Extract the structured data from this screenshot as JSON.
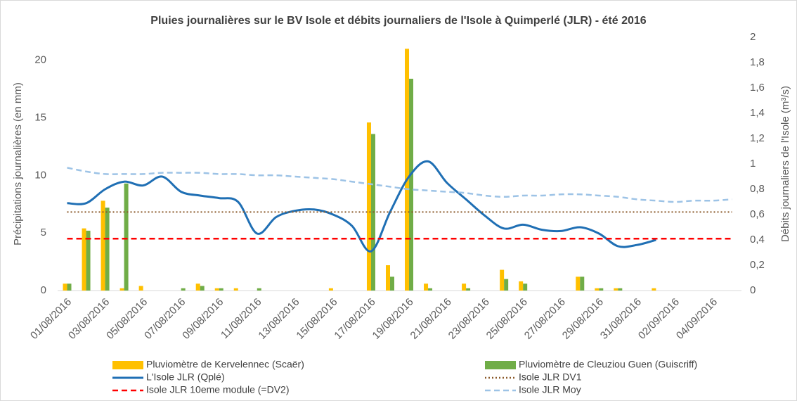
{
  "chart_data": {
    "type": "combo",
    "title": "Pluies journalières sur le BV Isole et débits journaliers de l'Isole à Quimperlé (JLR) - été 2016",
    "ylabel": "Précipitations journalières (en mm)",
    "y2label": "Débits journaliers de l'Isole  (m³/s)",
    "categories": [
      "01/08/2016",
      null,
      "03/08/2016",
      null,
      "05/08/2016",
      null,
      "07/08/2016",
      null,
      "09/08/2016",
      null,
      "11/08/2016",
      null,
      "13/08/2016",
      null,
      "15/08/2016",
      null,
      "17/08/2016",
      null,
      "19/08/2016",
      null,
      "21/08/2016",
      null,
      "23/08/2016",
      null,
      "25/08/2016",
      null,
      "27/08/2016",
      null,
      "29/08/2016",
      null,
      "31/08/2016",
      null,
      "02/09/2016",
      null,
      "04/09/2016",
      null
    ],
    "ylim": [
      0,
      22
    ],
    "yticks": [
      0,
      5,
      10,
      15,
      20
    ],
    "y2lim": [
      0,
      2
    ],
    "y2ticks": [
      0,
      {
        "value": 0.2,
        "label": "0,2"
      },
      {
        "value": 0.4,
        "label": "0,4"
      },
      {
        "value": 0.6,
        "label": "0,6"
      },
      {
        "value": 0.8,
        "label": "0,8"
      },
      1,
      {
        "value": 1.2,
        "label": "1,2"
      },
      {
        "value": 1.4,
        "label": "1,4"
      },
      {
        "value": 1.6,
        "label": "1,6"
      },
      {
        "value": 1.8,
        "label": "1,8"
      },
      2
    ],
    "series": [
      {
        "name": "Pluviomètre de Kervelennec (Scaër)",
        "type": "bar",
        "color": "#ffc000",
        "values": [
          0.6,
          5.4,
          7.8,
          0.2,
          0.4,
          0,
          0,
          0.6,
          0.2,
          0.2,
          0,
          0,
          0,
          0,
          0.2,
          0,
          14.6,
          2.2,
          21,
          0.6,
          0,
          0.6,
          0,
          1.8,
          0.8,
          0,
          0,
          1.2,
          0.2,
          0.2,
          0,
          0.2,
          0,
          0,
          0,
          0
        ]
      },
      {
        "name": "Pluviomètre de Cleuziou Guen (Guiscriff)",
        "type": "bar",
        "color": "#70ad47",
        "values": [
          0.6,
          5.2,
          7.2,
          9.3,
          0,
          0,
          0.2,
          0.4,
          0.2,
          0,
          0.2,
          0,
          0,
          0,
          0,
          0,
          13.6,
          1.2,
          18.4,
          0.2,
          0,
          0.2,
          0,
          1.0,
          0.6,
          0,
          0,
          1.2,
          0.2,
          0.2,
          0,
          0,
          0,
          0,
          0,
          0
        ]
      },
      {
        "name": "L'Isole JLR (Qplé)",
        "type": "line",
        "axis": "y2",
        "color": "#1f6fb4",
        "line_style": "solid",
        "smooth": true,
        "values": [
          0.69,
          0.69,
          0.8,
          0.86,
          0.83,
          0.9,
          0.78,
          0.75,
          0.73,
          0.7,
          0.45,
          0.58,
          0.63,
          0.64,
          0.6,
          0.51,
          0.31,
          0.62,
          0.9,
          1.02,
          0.85,
          0.72,
          0.59,
          0.49,
          0.52,
          0.48,
          0.47,
          0.5,
          0.45,
          0.35,
          0.36,
          0.4,
          null,
          null,
          null,
          null
        ]
      },
      {
        "name": "Isole JLR DV1",
        "type": "line",
        "axis": "y2",
        "color": "#8b5a2b",
        "line_style": "dotted",
        "smooth": false,
        "values": [
          0.62,
          0.62,
          0.62,
          0.62,
          0.62,
          0.62,
          0.62,
          0.62,
          0.62,
          0.62,
          0.62,
          0.62,
          0.62,
          0.62,
          0.62,
          0.62,
          0.62,
          0.62,
          0.62,
          0.62,
          0.62,
          0.62,
          0.62,
          0.62,
          0.62,
          0.62,
          0.62,
          0.62,
          0.62,
          0.62,
          0.62,
          0.62,
          0.62,
          0.62,
          0.62,
          0.62
        ]
      },
      {
        "name": "Isole JLR 10eme module (=DV2)",
        "type": "line",
        "axis": "y2",
        "color": "#ff0000",
        "line_style": "dashed",
        "smooth": false,
        "values": [
          0.41,
          0.41,
          0.41,
          0.41,
          0.41,
          0.41,
          0.41,
          0.41,
          0.41,
          0.41,
          0.41,
          0.41,
          0.41,
          0.41,
          0.41,
          0.41,
          0.41,
          0.41,
          0.41,
          0.41,
          0.41,
          0.41,
          0.41,
          0.41,
          0.41,
          0.41,
          0.41,
          0.41,
          0.41,
          0.41,
          0.41,
          0.41,
          0.41,
          0.41,
          0.41,
          0.41
        ]
      },
      {
        "name": "Isole JLR Moy",
        "type": "line",
        "axis": "y2",
        "color": "#9dc3e6",
        "line_style": "dashed",
        "smooth": true,
        "values": [
          0.97,
          0.94,
          0.92,
          0.92,
          0.92,
          0.93,
          0.93,
          0.93,
          0.92,
          0.92,
          0.91,
          0.91,
          0.9,
          0.89,
          0.88,
          0.86,
          0.84,
          0.82,
          0.8,
          0.79,
          0.78,
          0.77,
          0.75,
          0.74,
          0.75,
          0.75,
          0.76,
          0.76,
          0.75,
          0.74,
          0.72,
          0.71,
          0.7,
          0.71,
          0.71,
          0.72
        ]
      }
    ]
  }
}
